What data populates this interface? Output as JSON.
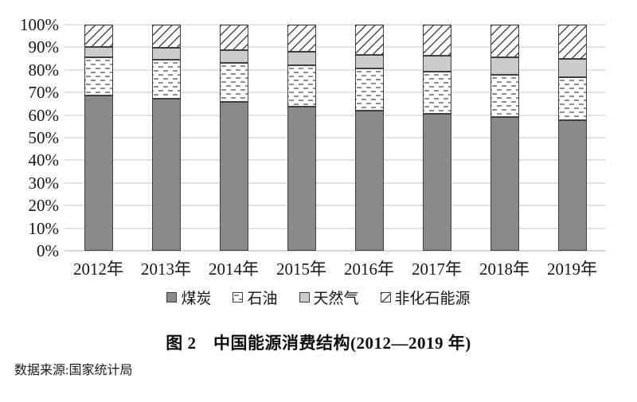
{
  "figure": {
    "title": "图 2　中国能源消费结构(2012—2019 年)",
    "source": "数据来源:国家统计局"
  },
  "colors": {
    "coal_fill": "#8a8a8a",
    "gas_fill": "#cccccc",
    "oil_pattern_line": "#8f8f8f",
    "nonfossil_pattern_line": "#4a4a4a",
    "segment_border": "#3f3f3f",
    "gridline": "#e2e2e2",
    "text": "#161616"
  },
  "chart_data": {
    "type": "bar",
    "stacked": true,
    "title": "图 2　中国能源消费结构(2012—2019 年)",
    "xlabel": "",
    "ylabel": "",
    "ylim": [
      0,
      100
    ],
    "grid": true,
    "legend_position": "bottom",
    "ytick_labels": [
      "0%",
      "10%",
      "20%",
      "30%",
      "40%",
      "50%",
      "60%",
      "70%",
      "80%",
      "90%",
      "100%"
    ],
    "categories": [
      "2012年",
      "2013年",
      "2014年",
      "2015年",
      "2016年",
      "2017年",
      "2018年",
      "2019年"
    ],
    "series": [
      {
        "key": "coal",
        "name": "煤炭",
        "pattern": "solid",
        "fill": "#8a8a8a",
        "values": [
          68.5,
          67.4,
          65.8,
          63.8,
          62.0,
          60.6,
          59.0,
          57.7
        ]
      },
      {
        "key": "oil",
        "name": "石油",
        "pattern": "dash-dots",
        "fill": "#ffffff",
        "pattern_color": "#8f8f8f",
        "values": [
          17.0,
          17.1,
          17.3,
          18.4,
          18.5,
          18.8,
          18.9,
          18.9
        ]
      },
      {
        "key": "gas",
        "name": "天然气",
        "pattern": "solid",
        "fill": "#cccccc",
        "values": [
          4.8,
          5.3,
          5.6,
          5.8,
          6.2,
          7.0,
          7.8,
          8.1
        ]
      },
      {
        "key": "nonfossil",
        "name": "非化石能源",
        "pattern": "diagonal-hatch",
        "fill": "#ffffff",
        "pattern_color": "#4a4a4a",
        "values": [
          9.7,
          10.2,
          11.3,
          12.0,
          13.3,
          13.6,
          14.3,
          15.3
        ]
      }
    ]
  }
}
